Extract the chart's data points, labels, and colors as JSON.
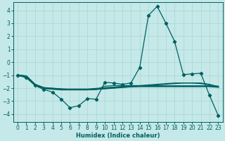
{
  "xlabel": "Humidex (Indice chaleur)",
  "bg_color": "#c5e8e8",
  "grid_color": "#aad4d4",
  "line_color": "#006060",
  "xlim": [
    -0.5,
    23.5
  ],
  "ylim": [
    -4.6,
    4.6
  ],
  "xticks": [
    0,
    1,
    2,
    3,
    4,
    5,
    6,
    7,
    8,
    9,
    10,
    11,
    12,
    13,
    14,
    15,
    16,
    17,
    18,
    19,
    20,
    21,
    22,
    23
  ],
  "yticks": [
    -4,
    -3,
    -2,
    -1,
    0,
    1,
    2,
    3,
    4
  ],
  "line1_x": [
    0,
    1,
    2,
    3,
    4,
    5,
    6,
    7,
    8,
    9,
    10,
    11,
    12,
    13,
    14,
    15,
    16,
    17,
    18,
    19,
    20,
    21,
    22,
    23
  ],
  "line1_y": [
    -1.0,
    -1.2,
    -1.8,
    -2.1,
    -2.3,
    -2.85,
    -3.5,
    -3.35,
    -2.8,
    -2.85,
    -1.55,
    -1.6,
    -1.7,
    -1.6,
    -0.4,
    3.6,
    4.3,
    3.0,
    1.6,
    -0.95,
    -0.9,
    -0.85,
    -2.55,
    -4.1
  ],
  "line2_x": [
    0,
    1,
    2,
    3,
    4,
    5,
    6,
    7,
    8,
    9,
    10,
    11,
    12,
    13,
    14,
    15,
    16,
    17,
    18,
    19,
    20,
    21,
    22,
    23
  ],
  "line2_y": [
    -1.0,
    -1.05,
    -1.7,
    -1.95,
    -2.0,
    -2.05,
    -2.1,
    -2.1,
    -2.1,
    -2.1,
    -2.05,
    -2.0,
    -1.95,
    -1.9,
    -1.85,
    -1.8,
    -1.75,
    -1.7,
    -1.65,
    -1.6,
    -1.6,
    -1.65,
    -1.75,
    -1.85
  ],
  "line3_x": [
    0,
    1,
    2,
    3,
    4,
    5,
    6,
    7,
    8,
    9,
    10,
    11,
    12,
    13,
    14,
    15,
    16,
    17,
    18,
    19,
    20,
    21,
    22,
    23
  ],
  "line3_y": [
    -1.0,
    -1.1,
    -1.75,
    -2.0,
    -2.05,
    -2.1,
    -2.1,
    -2.1,
    -2.1,
    -2.1,
    -1.85,
    -1.8,
    -1.8,
    -1.8,
    -1.8,
    -1.75,
    -1.7,
    -1.65,
    -1.6,
    -1.6,
    -1.6,
    -1.6,
    -1.7,
    -1.9
  ],
  "line4_x": [
    0,
    1,
    2,
    3,
    4,
    5,
    6,
    7,
    8,
    9,
    10,
    11,
    12,
    13,
    14,
    15,
    16,
    17,
    18,
    19,
    20,
    21,
    22,
    23
  ],
  "line4_y": [
    -1.0,
    -1.1,
    -1.75,
    -2.0,
    -2.05,
    -2.1,
    -2.1,
    -2.1,
    -2.1,
    -2.05,
    -2.0,
    -1.95,
    -1.9,
    -1.85,
    -1.85,
    -1.85,
    -1.85,
    -1.85,
    -1.85,
    -1.85,
    -1.85,
    -1.85,
    -1.85,
    -1.9
  ]
}
